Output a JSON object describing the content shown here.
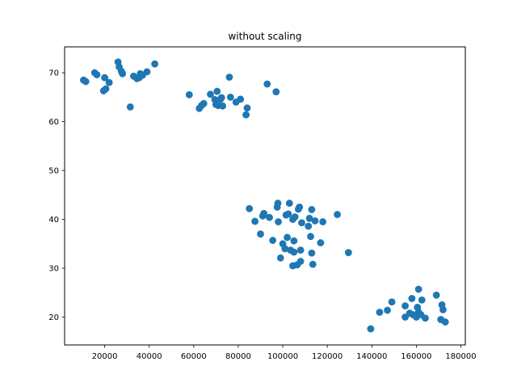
{
  "chart_data": {
    "type": "scatter",
    "title": "without scaling",
    "xlabel": "",
    "ylabel": "",
    "xlim": [
      2000,
      182000
    ],
    "ylim": [
      14.3,
      75.3
    ],
    "grid": false,
    "marker_color": "#1f77b4",
    "x_ticks": [
      20000,
      40000,
      60000,
      80000,
      100000,
      120000,
      140000,
      160000,
      180000
    ],
    "y_ticks": [
      20,
      30,
      40,
      50,
      60,
      70
    ],
    "x_tick_labels": [
      "20000",
      "40000",
      "60000",
      "80000",
      "100000",
      "120000",
      "140000",
      "160000",
      "180000"
    ],
    "y_tick_labels": [
      "20",
      "30",
      "40",
      "50",
      "60",
      "70"
    ],
    "points": [
      [
        10500,
        68.5
      ],
      [
        11500,
        68.2
      ],
      [
        15500,
        70.0
      ],
      [
        16500,
        69.6
      ],
      [
        19500,
        66.3
      ],
      [
        20000,
        69.0
      ],
      [
        20500,
        66.7
      ],
      [
        22000,
        68.0
      ],
      [
        26000,
        72.2
      ],
      [
        26500,
        71.2
      ],
      [
        27500,
        70.3
      ],
      [
        28000,
        69.8
      ],
      [
        31500,
        63.0
      ],
      [
        33000,
        69.3
      ],
      [
        34500,
        68.8
      ],
      [
        35500,
        69.0
      ],
      [
        36000,
        69.8
      ],
      [
        37000,
        69.5
      ],
      [
        39000,
        70.2
      ],
      [
        42500,
        71.8
      ],
      [
        58000,
        65.5
      ],
      [
        62500,
        62.7
      ],
      [
        63500,
        63.3
      ],
      [
        64500,
        63.7
      ],
      [
        67500,
        65.6
      ],
      [
        69500,
        64.5
      ],
      [
        70000,
        63.5
      ],
      [
        70500,
        66.2
      ],
      [
        71000,
        63.3
      ],
      [
        72000,
        64.6
      ],
      [
        72500,
        64.9
      ],
      [
        73000,
        63.2
      ],
      [
        76000,
        69.1
      ],
      [
        76500,
        65.0
      ],
      [
        79000,
        64.0
      ],
      [
        81000,
        64.6
      ],
      [
        83500,
        61.4
      ],
      [
        84000,
        62.8
      ],
      [
        93000,
        67.7
      ],
      [
        97000,
        66.1
      ],
      [
        85000,
        42.2
      ],
      [
        87500,
        39.6
      ],
      [
        90000,
        37.0
      ],
      [
        91000,
        40.7
      ],
      [
        91500,
        41.2
      ],
      [
        94000,
        40.4
      ],
      [
        95500,
        35.7
      ],
      [
        97500,
        42.5
      ],
      [
        97800,
        43.3
      ],
      [
        98000,
        39.5
      ],
      [
        99000,
        32.1
      ],
      [
        100000,
        35.0
      ],
      [
        101000,
        34.0
      ],
      [
        101500,
        40.9
      ],
      [
        102000,
        36.3
      ],
      [
        102500,
        41.1
      ],
      [
        103000,
        43.3
      ],
      [
        103500,
        33.7
      ],
      [
        104500,
        30.5
      ],
      [
        104500,
        40.0
      ],
      [
        105000,
        35.6
      ],
      [
        105000,
        33.3
      ],
      [
        105500,
        40.5
      ],
      [
        106500,
        30.7
      ],
      [
        107000,
        42.1
      ],
      [
        107500,
        42.5
      ],
      [
        108000,
        33.7
      ],
      [
        108000,
        31.4
      ],
      [
        108500,
        39.3
      ],
      [
        111500,
        38.6
      ],
      [
        112000,
        40.2
      ],
      [
        112500,
        36.5
      ],
      [
        113000,
        33.1
      ],
      [
        113000,
        42.0
      ],
      [
        113500,
        30.8
      ],
      [
        114500,
        39.7
      ],
      [
        117000,
        35.2
      ],
      [
        118000,
        39.5
      ],
      [
        124500,
        41.0
      ],
      [
        129500,
        33.2
      ],
      [
        139500,
        17.6
      ],
      [
        143500,
        21.0
      ],
      [
        147000,
        21.4
      ],
      [
        149000,
        23.1
      ],
      [
        155000,
        22.3
      ],
      [
        155000,
        20.0
      ],
      [
        157000,
        20.8
      ],
      [
        158000,
        23.8
      ],
      [
        158500,
        20.5
      ],
      [
        160000,
        20.0
      ],
      [
        160500,
        22.0
      ],
      [
        161000,
        25.7
      ],
      [
        161000,
        21.0
      ],
      [
        162000,
        20.5
      ],
      [
        162500,
        23.5
      ],
      [
        164000,
        19.8
      ],
      [
        169000,
        24.5
      ],
      [
        171000,
        19.5
      ],
      [
        171500,
        22.5
      ],
      [
        172000,
        21.5
      ],
      [
        173000,
        19.0
      ]
    ]
  }
}
